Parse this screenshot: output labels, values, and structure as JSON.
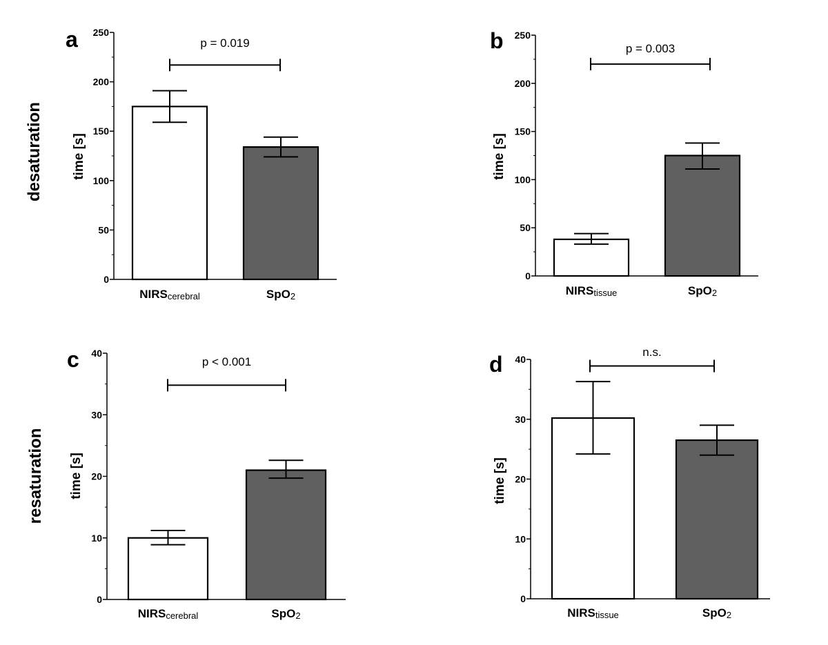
{
  "row_labels": [
    "desaturation",
    "resaturation"
  ],
  "chart_data": [
    {
      "panel": "a",
      "type": "bar",
      "ylabel": "time [s]",
      "ylim": [
        0,
        250
      ],
      "yticks": [
        0,
        50,
        100,
        150,
        200,
        250
      ],
      "categories": [
        {
          "main": "NIRS",
          "sub": "cerebral",
          "value": 175,
          "err_low": 159,
          "err_high": 191,
          "fill": "#ffffff"
        },
        {
          "main": "SpO",
          "sub": "2",
          "value": 134,
          "err_low": 124,
          "err_high": 144,
          "fill": "#606060"
        }
      ],
      "significance": {
        "label": "p = 0.019",
        "y": 217
      }
    },
    {
      "panel": "b",
      "type": "bar",
      "ylabel": "time [s]",
      "ylim": [
        0,
        250
      ],
      "yticks": [
        0,
        50,
        100,
        150,
        200,
        250
      ],
      "categories": [
        {
          "main": "NIRS",
          "sub": "tissue",
          "value": 38,
          "err_low": 33,
          "err_high": 44,
          "fill": "#ffffff"
        },
        {
          "main": "SpO",
          "sub": "2",
          "value": 125,
          "err_low": 111,
          "err_high": 138,
          "fill": "#606060"
        }
      ],
      "significance": {
        "label": "p = 0.003",
        "y": 220
      }
    },
    {
      "panel": "c",
      "type": "bar",
      "ylabel": "time [s]",
      "ylim": [
        0,
        40
      ],
      "yticks": [
        0,
        10,
        20,
        30,
        40
      ],
      "categories": [
        {
          "main": "NIRS",
          "sub": "cerebral",
          "value": 10,
          "err_low": 8.9,
          "err_high": 11.2,
          "fill": "#ffffff"
        },
        {
          "main": "SpO",
          "sub": "2",
          "value": 21,
          "err_low": 19.7,
          "err_high": 22.6,
          "fill": "#606060"
        }
      ],
      "significance": {
        "label": "p < 0.001",
        "y": 34.8
      }
    },
    {
      "panel": "d",
      "type": "bar",
      "ylabel": "time [s]",
      "ylim": [
        0,
        40
      ],
      "yticks": [
        0,
        10,
        20,
        30,
        40
      ],
      "categories": [
        {
          "main": "NIRS",
          "sub": "tissue",
          "value": 30.2,
          "err_low": 24.2,
          "err_high": 36.3,
          "fill": "#ffffff"
        },
        {
          "main": "SpO",
          "sub": "2",
          "value": 26.5,
          "err_low": 24.0,
          "err_high": 29.0,
          "fill": "#606060"
        }
      ],
      "significance": {
        "label": "n.s.",
        "y": 38.9
      }
    }
  ]
}
